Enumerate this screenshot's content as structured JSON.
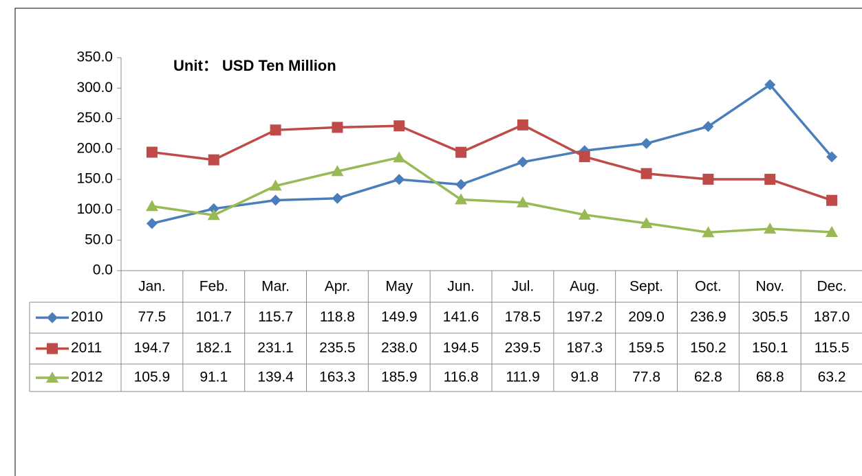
{
  "chart_data": {
    "type": "line",
    "annotation": "Unit： USD Ten Million",
    "categories": [
      "Jan.",
      "Feb.",
      "Mar.",
      "Apr.",
      "May",
      "Jun.",
      "Jul.",
      "Aug.",
      "Sept.",
      "Oct.",
      "Nov.",
      "Dec."
    ],
    "series": [
      {
        "name": "2010",
        "color": "#4a7ebb",
        "marker": "diamond",
        "values": [
          77.5,
          101.7,
          115.7,
          118.8,
          149.9,
          141.6,
          178.5,
          197.2,
          209.0,
          236.9,
          305.5,
          187.0
        ],
        "value_labels": [
          "77.5",
          "101.7",
          "115.7",
          "118.8",
          "149.9",
          "141.6",
          "178.5",
          "197.2",
          "209.0",
          "236.9",
          "305.5",
          "187.0"
        ]
      },
      {
        "name": "2011",
        "color": "#be4b48",
        "marker": "square",
        "values": [
          194.7,
          182.1,
          231.1,
          235.5,
          238.0,
          194.5,
          239.5,
          187.3,
          159.5,
          150.2,
          150.1,
          115.5
        ],
        "value_labels": [
          "194.7",
          "182.1",
          "231.1",
          "235.5",
          "238.0",
          "194.5",
          "239.5",
          "187.3",
          "159.5",
          "150.2",
          "150.1",
          "115.5"
        ]
      },
      {
        "name": "2012",
        "color": "#98b954",
        "marker": "triangle",
        "values": [
          105.9,
          91.1,
          139.4,
          163.3,
          185.9,
          116.8,
          111.9,
          91.8,
          77.8,
          62.8,
          68.8,
          63.2
        ],
        "value_labels": [
          "105.9",
          "91.1",
          "139.4",
          "163.3",
          "185.9",
          "116.8",
          "111.9",
          "91.8",
          "77.8",
          "62.8",
          "68.8",
          "63.2"
        ]
      }
    ],
    "ylim": [
      0,
      350
    ],
    "yticks": [
      {
        "value": 0,
        "label": "0.0"
      },
      {
        "value": 50,
        "label": "50.0"
      },
      {
        "value": 100,
        "label": "100.0"
      },
      {
        "value": 150,
        "label": "150.0"
      },
      {
        "value": 200,
        "label": "200.0"
      },
      {
        "value": 250,
        "label": "250.0"
      },
      {
        "value": 300,
        "label": "300.0"
      },
      {
        "value": 350,
        "label": "350.0"
      }
    ]
  }
}
